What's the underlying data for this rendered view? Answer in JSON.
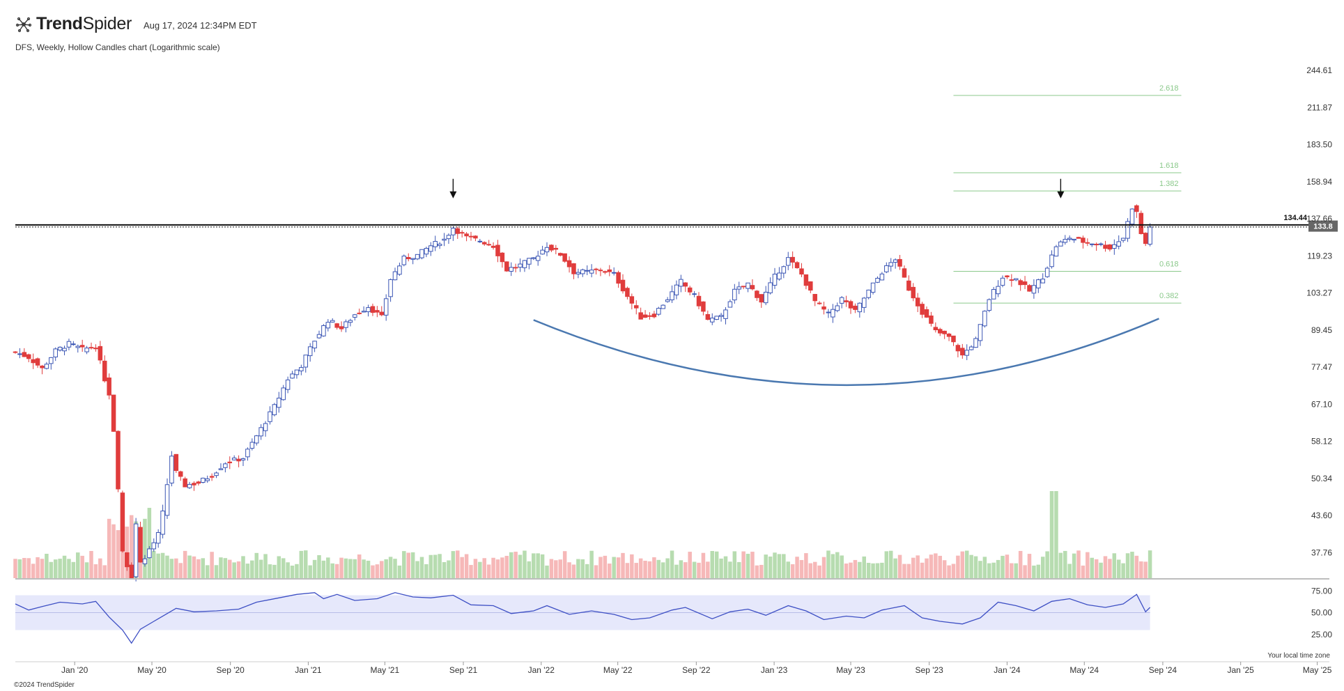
{
  "header": {
    "brand_bold": "Trend",
    "brand_regular": "Spider",
    "timestamp": "Aug 17, 2024 12:34PM EDT",
    "chart_description": "DFS, Weekly, Hollow Candles chart (Logarithmic scale)"
  },
  "footer": {
    "copyright": "©2024 TrendSpider",
    "timezone_note": "Your local time zone"
  },
  "colors": {
    "up": "#3a55b4",
    "down": "#e03c3c",
    "vol_up": "#b7dcb0",
    "vol_down": "#f6b8b8",
    "fib": "#8bc98b",
    "rsi_line": "#3d4fc4",
    "rsi_band": "#e6e8fb",
    "resistance": "#111111",
    "arc": "#4a78b0",
    "last_price_bg": "#666666"
  },
  "chart_data": {
    "type": "candlestick",
    "symbol": "DFS",
    "interval": "Weekly",
    "scale": "log",
    "y_ticks": [
      "244.61",
      "211.87",
      "183.50",
      "158.94",
      "137.66",
      "119.23",
      "103.27",
      "89.45",
      "77.47",
      "67.10",
      "58.12",
      "50.34",
      "43.60",
      "37.76"
    ],
    "y_tick_values": [
      244.61,
      211.87,
      183.5,
      158.94,
      137.66,
      119.23,
      103.27,
      89.45,
      77.47,
      67.1,
      58.12,
      50.34,
      43.6,
      37.76
    ],
    "x_ticks": [
      "Jan '20",
      "May '20",
      "Sep '20",
      "Jan '21",
      "May '21",
      "Sep '21",
      "Jan '22",
      "May '22",
      "Sep '22",
      "Jan '23",
      "May '23",
      "Sep '23",
      "Jan '24",
      "May '24",
      "Sep '24",
      "Jan '25",
      "May '25"
    ],
    "x_tick_dates": [
      "2020-01-01",
      "2020-05-01",
      "2020-09-01",
      "2021-01-01",
      "2021-05-01",
      "2021-09-01",
      "2022-01-01",
      "2022-05-01",
      "2022-09-01",
      "2023-01-01",
      "2023-05-01",
      "2023-09-01",
      "2024-01-01",
      "2024-05-01",
      "2024-09-01",
      "2025-01-01",
      "2025-05-01"
    ],
    "x_range": [
      "2019-09-30",
      "2025-05-20"
    ],
    "y_range": [
      34.2,
      266
    ],
    "resistance_level": 134.44,
    "resistance_label": "134.44",
    "last_price": 133.8,
    "last_price_label": "133.8",
    "fib_levels": [
      {
        "label": "2.618",
        "value": 222.0
      },
      {
        "label": "1.618",
        "value": 164.5
      },
      {
        "label": "1.382",
        "value": 153.3
      },
      {
        "label": "0.618",
        "value": 112.3
      },
      {
        "label": "0.382",
        "value": 99.3
      }
    ],
    "fib_range": [
      "2023-10-09",
      "2024-09-30"
    ],
    "arrows": [
      {
        "date": "2021-08-16",
        "value": 149.0
      },
      {
        "date": "2024-03-25",
        "value": 149.0
      }
    ],
    "rounding_bottom": {
      "start": [
        "2021-12-20",
        93.0
      ],
      "control": [
        "2023-05-01",
        56.0
      ],
      "end": [
        "2024-08-26",
        93.5
      ]
    },
    "closes": [
      {
        "date": "2019-09-30",
        "close": 82.1
      },
      {
        "date": "2019-10-21",
        "close": 80.5
      },
      {
        "date": "2019-11-11",
        "close": 77.0
      },
      {
        "date": "2019-12-02",
        "close": 82.5
      },
      {
        "date": "2019-12-23",
        "close": 84.8
      },
      {
        "date": "2020-01-13",
        "close": 83.0
      },
      {
        "date": "2020-02-03",
        "close": 84.0
      },
      {
        "date": "2020-02-17",
        "close": 74.0
      },
      {
        "date": "2020-02-24",
        "close": 70.0
      },
      {
        "date": "2020-03-02",
        "close": 60.0
      },
      {
        "date": "2020-03-09",
        "close": 48.0
      },
      {
        "date": "2020-03-16",
        "close": 38.0
      },
      {
        "date": "2020-03-23",
        "close": 36.0
      },
      {
        "date": "2020-03-30",
        "close": 34.5
      },
      {
        "date": "2020-04-06",
        "close": 42.0
      },
      {
        "date": "2020-04-13",
        "close": 36.5
      },
      {
        "date": "2020-04-20",
        "close": 37.0
      },
      {
        "date": "2020-04-27",
        "close": 38.0
      },
      {
        "date": "2020-05-11",
        "close": 40.5
      },
      {
        "date": "2020-05-18",
        "close": 44.0
      },
      {
        "date": "2020-06-01",
        "close": 55.0
      },
      {
        "date": "2020-06-08",
        "close": 51.5
      },
      {
        "date": "2020-06-22",
        "close": 49.0
      },
      {
        "date": "2020-07-13",
        "close": 49.5
      },
      {
        "date": "2020-08-03",
        "close": 51.0
      },
      {
        "date": "2020-08-24",
        "close": 53.5
      },
      {
        "date": "2020-09-21",
        "close": 54.5
      },
      {
        "date": "2020-10-19",
        "close": 61.0
      },
      {
        "date": "2020-11-09",
        "close": 66.5
      },
      {
        "date": "2020-11-30",
        "close": 74.0
      },
      {
        "date": "2020-12-21",
        "close": 78.0
      },
      {
        "date": "2021-01-11",
        "close": 86.0
      },
      {
        "date": "2021-02-01",
        "close": 93.0
      },
      {
        "date": "2021-02-22",
        "close": 90.0
      },
      {
        "date": "2021-03-15",
        "close": 95.0
      },
      {
        "date": "2021-04-05",
        "close": 98.0
      },
      {
        "date": "2021-04-26",
        "close": 94.0
      },
      {
        "date": "2021-05-10",
        "close": 109.0
      },
      {
        "date": "2021-05-31",
        "close": 118.0
      },
      {
        "date": "2021-06-21",
        "close": 119.5
      },
      {
        "date": "2021-07-12",
        "close": 124.0
      },
      {
        "date": "2021-08-02",
        "close": 127.0
      },
      {
        "date": "2021-08-16",
        "close": 133.0
      },
      {
        "date": "2021-09-06",
        "close": 128.0
      },
      {
        "date": "2021-09-27",
        "close": 126.5
      },
      {
        "date": "2021-10-18",
        "close": 124.0
      },
      {
        "date": "2021-11-08",
        "close": 113.0
      },
      {
        "date": "2021-11-29",
        "close": 115.0
      },
      {
        "date": "2021-12-20",
        "close": 118.0
      },
      {
        "date": "2022-01-10",
        "close": 124.0
      },
      {
        "date": "2022-01-31",
        "close": 120.0
      },
      {
        "date": "2022-02-21",
        "close": 112.0
      },
      {
        "date": "2022-03-14",
        "close": 112.0
      },
      {
        "date": "2022-04-04",
        "close": 113.0
      },
      {
        "date": "2022-04-25",
        "close": 111.0
      },
      {
        "date": "2022-05-16",
        "close": 102.0
      },
      {
        "date": "2022-06-06",
        "close": 94.0
      },
      {
        "date": "2022-06-27",
        "close": 95.0
      },
      {
        "date": "2022-07-18",
        "close": 101.0
      },
      {
        "date": "2022-08-08",
        "close": 108.0
      },
      {
        "date": "2022-08-29",
        "close": 102.0
      },
      {
        "date": "2022-09-19",
        "close": 93.0
      },
      {
        "date": "2022-10-10",
        "close": 94.0
      },
      {
        "date": "2022-10-31",
        "close": 104.0
      },
      {
        "date": "2022-11-21",
        "close": 107.0
      },
      {
        "date": "2022-12-12",
        "close": 100.0
      },
      {
        "date": "2023-01-02",
        "close": 110.0
      },
      {
        "date": "2023-01-23",
        "close": 118.0
      },
      {
        "date": "2023-02-13",
        "close": 111.0
      },
      {
        "date": "2023-03-06",
        "close": 100.0
      },
      {
        "date": "2023-03-27",
        "close": 95.0
      },
      {
        "date": "2023-04-17",
        "close": 101.0
      },
      {
        "date": "2023-05-08",
        "close": 96.0
      },
      {
        "date": "2023-05-29",
        "close": 104.0
      },
      {
        "date": "2023-06-19",
        "close": 112.0
      },
      {
        "date": "2023-07-10",
        "close": 118.0
      },
      {
        "date": "2023-07-31",
        "close": 105.0
      },
      {
        "date": "2023-08-21",
        "close": 96.0
      },
      {
        "date": "2023-09-11",
        "close": 89.0
      },
      {
        "date": "2023-10-02",
        "close": 87.0
      },
      {
        "date": "2023-10-23",
        "close": 81.0
      },
      {
        "date": "2023-11-13",
        "close": 86.0
      },
      {
        "date": "2023-12-04",
        "close": 101.0
      },
      {
        "date": "2023-12-25",
        "close": 110.0
      },
      {
        "date": "2024-01-15",
        "close": 109.0
      },
      {
        "date": "2024-02-05",
        "close": 104.0
      },
      {
        "date": "2024-02-26",
        "close": 110.0
      },
      {
        "date": "2024-03-18",
        "close": 124.0
      },
      {
        "date": "2024-04-08",
        "close": 128.0
      },
      {
        "date": "2024-04-29",
        "close": 126.0
      },
      {
        "date": "2024-05-20",
        "close": 125.0
      },
      {
        "date": "2024-06-10",
        "close": 123.0
      },
      {
        "date": "2024-07-01",
        "close": 128.0
      },
      {
        "date": "2024-07-15",
        "close": 144.0
      },
      {
        "date": "2024-07-22",
        "close": 141.0
      },
      {
        "date": "2024-07-29",
        "close": 130.0
      },
      {
        "date": "2024-08-05",
        "close": 125.0
      },
      {
        "date": "2024-08-12",
        "close": 133.8
      }
    ],
    "rsi": {
      "y_ticks": [
        "75.00",
        "50.00",
        "25.00"
      ],
      "y_tick_values": [
        75,
        50,
        25
      ],
      "band": [
        30,
        70
      ],
      "points": [
        {
          "date": "2019-09-30",
          "value": 60
        },
        {
          "date": "2019-10-21",
          "value": 53
        },
        {
          "date": "2019-11-11",
          "value": 57
        },
        {
          "date": "2019-12-09",
          "value": 62
        },
        {
          "date": "2020-01-13",
          "value": 60
        },
        {
          "date": "2020-02-03",
          "value": 63
        },
        {
          "date": "2020-02-24",
          "value": 45
        },
        {
          "date": "2020-03-16",
          "value": 30
        },
        {
          "date": "2020-03-30",
          "value": 15
        },
        {
          "date": "2020-04-13",
          "value": 31
        },
        {
          "date": "2020-05-04",
          "value": 40
        },
        {
          "date": "2020-06-08",
          "value": 55
        },
        {
          "date": "2020-07-06",
          "value": 51
        },
        {
          "date": "2020-08-10",
          "value": 52
        },
        {
          "date": "2020-09-14",
          "value": 54
        },
        {
          "date": "2020-10-12",
          "value": 62
        },
        {
          "date": "2020-11-16",
          "value": 67
        },
        {
          "date": "2020-12-14",
          "value": 71
        },
        {
          "date": "2021-01-11",
          "value": 73
        },
        {
          "date": "2021-01-25",
          "value": 66
        },
        {
          "date": "2021-02-15",
          "value": 71
        },
        {
          "date": "2021-03-15",
          "value": 64
        },
        {
          "date": "2021-04-19",
          "value": 66
        },
        {
          "date": "2021-05-17",
          "value": 73
        },
        {
          "date": "2021-06-14",
          "value": 68
        },
        {
          "date": "2021-07-12",
          "value": 67
        },
        {
          "date": "2021-08-16",
          "value": 70
        },
        {
          "date": "2021-09-13",
          "value": 59
        },
        {
          "date": "2021-10-18",
          "value": 58
        },
        {
          "date": "2021-11-15",
          "value": 49
        },
        {
          "date": "2021-12-20",
          "value": 52
        },
        {
          "date": "2022-01-10",
          "value": 58
        },
        {
          "date": "2022-02-14",
          "value": 48
        },
        {
          "date": "2022-03-21",
          "value": 52
        },
        {
          "date": "2022-04-25",
          "value": 48
        },
        {
          "date": "2022-05-23",
          "value": 42
        },
        {
          "date": "2022-06-20",
          "value": 44
        },
        {
          "date": "2022-07-25",
          "value": 53
        },
        {
          "date": "2022-08-15",
          "value": 56
        },
        {
          "date": "2022-09-26",
          "value": 43
        },
        {
          "date": "2022-10-24",
          "value": 51
        },
        {
          "date": "2022-11-21",
          "value": 54
        },
        {
          "date": "2022-12-19",
          "value": 47
        },
        {
          "date": "2023-01-23",
          "value": 58
        },
        {
          "date": "2023-02-20",
          "value": 52
        },
        {
          "date": "2023-03-20",
          "value": 42
        },
        {
          "date": "2023-04-24",
          "value": 46
        },
        {
          "date": "2023-05-22",
          "value": 44
        },
        {
          "date": "2023-06-19",
          "value": 53
        },
        {
          "date": "2023-07-24",
          "value": 58
        },
        {
          "date": "2023-08-21",
          "value": 44
        },
        {
          "date": "2023-09-18",
          "value": 40
        },
        {
          "date": "2023-10-23",
          "value": 37
        },
        {
          "date": "2023-11-20",
          "value": 44
        },
        {
          "date": "2023-12-18",
          "value": 62
        },
        {
          "date": "2024-01-15",
          "value": 58
        },
        {
          "date": "2024-02-12",
          "value": 52
        },
        {
          "date": "2024-03-11",
          "value": 63
        },
        {
          "date": "2024-04-08",
          "value": 66
        },
        {
          "date": "2024-05-06",
          "value": 59
        },
        {
          "date": "2024-06-03",
          "value": 56
        },
        {
          "date": "2024-07-01",
          "value": 60
        },
        {
          "date": "2024-07-22",
          "value": 71
        },
        {
          "date": "2024-08-05",
          "value": 51
        },
        {
          "date": "2024-08-12",
          "value": 56
        }
      ]
    }
  }
}
